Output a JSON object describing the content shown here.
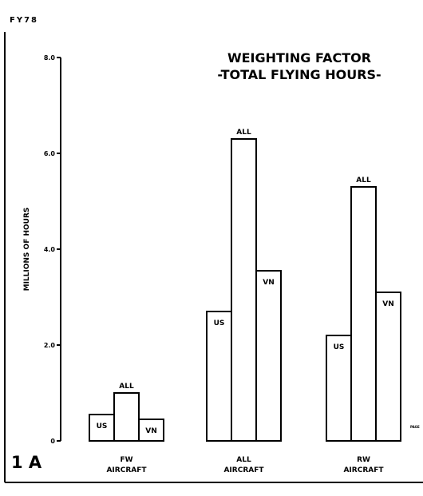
{
  "header": {
    "year_label": "FY78",
    "figure_label": "1 A",
    "corner_mark": "PAGE"
  },
  "chart_data": {
    "type": "bar",
    "title": "WEIGHTING FACTOR",
    "subtitle": "-TOTAL FLYING HOURS-",
    "ylabel": "MILLIONS OF HOURS",
    "xlabel": "",
    "ylim": [
      0,
      8.0
    ],
    "yticks": [
      0,
      2.0,
      4.0,
      6.0,
      8.0
    ],
    "ytick_labels": [
      "0",
      "2.0",
      "4.0",
      "6.0",
      "8.0"
    ],
    "grid": false,
    "groups": [
      {
        "line1": "FW",
        "line2": "AIRCRAFT",
        "bars": [
          {
            "label": "US",
            "value": 0.55
          },
          {
            "label": "ALL",
            "value": 1.0
          },
          {
            "label": "VN",
            "value": 0.45
          }
        ]
      },
      {
        "line1": "ALL",
        "line2": "AIRCRAFT",
        "bars": [
          {
            "label": "US",
            "value": 2.7
          },
          {
            "label": "ALL",
            "value": 6.3
          },
          {
            "label": "VN",
            "value": 3.55
          }
        ]
      },
      {
        "line1": "RW",
        "line2": "AIRCRAFT",
        "bars": [
          {
            "label": "US",
            "value": 2.2
          },
          {
            "label": "ALL",
            "value": 5.3
          },
          {
            "label": "VN",
            "value": 3.1
          }
        ]
      }
    ]
  }
}
